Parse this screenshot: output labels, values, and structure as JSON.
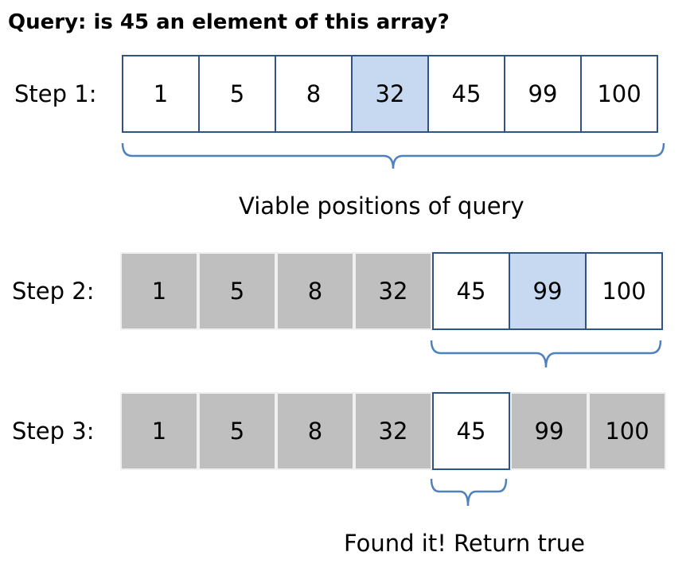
{
  "title": "Query: is 45 an element of this array?",
  "query": 45,
  "array": [
    1,
    5,
    8,
    32,
    45,
    99,
    100
  ],
  "steps": [
    {
      "label": "Step 1:",
      "viable": [
        0,
        1,
        2,
        3,
        4,
        5,
        6
      ],
      "midpoint": 3,
      "caption": "Viable positions of query"
    },
    {
      "label": "Step 2:",
      "viable": [
        4,
        5,
        6
      ],
      "midpoint": 5,
      "caption": ""
    },
    {
      "label": "Step 3:",
      "viable": [
        4
      ],
      "midpoint": null,
      "caption": "Found it! Return true"
    }
  ],
  "colors": {
    "border": "#2f5383",
    "midpoint_fill": "#c6d9f1",
    "eliminated_fill": "#bfbfbf",
    "bracket": "#4f81bd"
  }
}
